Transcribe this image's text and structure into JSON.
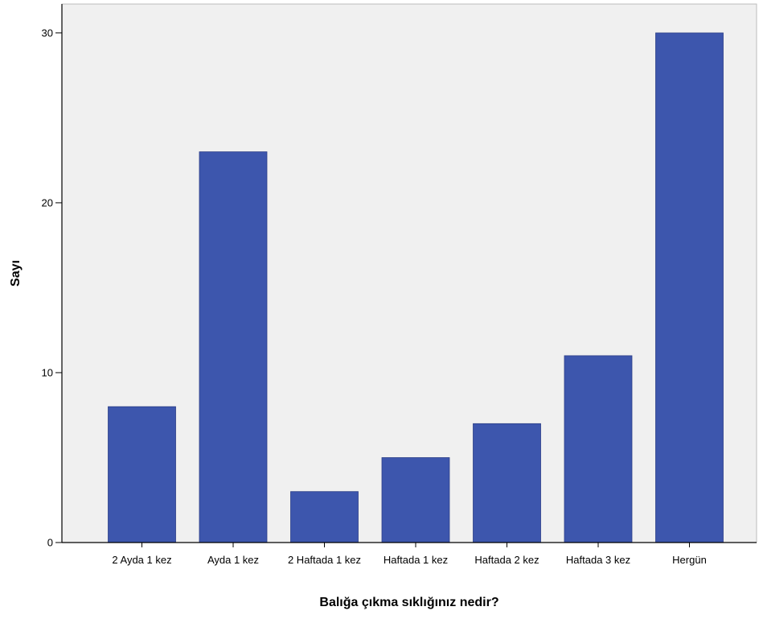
{
  "chart_data": {
    "type": "bar",
    "title": "",
    "xlabel": "Balığa çıkma sıklığınız nedir?",
    "ylabel": "Sayı",
    "categories": [
      "2 Ayda 1 kez",
      "Ayda 1 kez",
      "2 Haftada 1 kez",
      "Haftada 1 kez",
      "Haftada 2 kez",
      "Haftada 3 kez",
      "Hergün"
    ],
    "values": [
      8,
      23,
      3,
      5,
      7,
      11,
      30
    ],
    "ylim": [
      0,
      31.7
    ],
    "yticks": [
      0,
      10,
      20,
      30
    ],
    "grid": false,
    "legend": "none",
    "colors": {
      "bar": "#3d56ad",
      "plot_background": "#f0f0f0",
      "axis": "#000000"
    }
  }
}
